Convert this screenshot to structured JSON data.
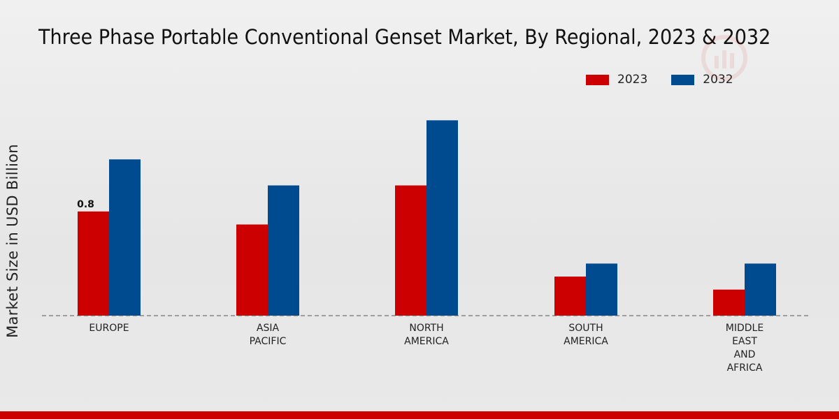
{
  "title": "Three Phase Portable Conventional Genset Market, By Regional, 2023 & 2032",
  "colors": {
    "2023": "#cc0000",
    "2032": "#004a8f",
    "footer": "#cc0000"
  },
  "chart_data": {
    "type": "bar",
    "title": "Three Phase Portable Conventional Genset Market, By Regional, 2023 & 2032",
    "ylabel": "Market Size in USD Billion",
    "xlabel": "",
    "categories": [
      "EUROPE",
      "ASIA PACIFIC",
      "NORTH AMERICA",
      "SOUTH AMERICA",
      "MIDDLE EAST AND AFRICA"
    ],
    "category_lines": [
      [
        "EUROPE"
      ],
      [
        "ASIA",
        "PACIFIC"
      ],
      [
        "NORTH",
        "AMERICA"
      ],
      [
        "SOUTH",
        "AMERICA"
      ],
      [
        "MIDDLE",
        "EAST",
        "AND",
        "AFRICA"
      ]
    ],
    "series": [
      {
        "name": "2023",
        "color": "#cc0000",
        "values": [
          0.8,
          0.7,
          1.0,
          0.3,
          0.2
        ]
      },
      {
        "name": "2032",
        "color": "#004a8f",
        "values": [
          1.2,
          1.0,
          1.5,
          0.4,
          0.4
        ]
      }
    ],
    "data_labels": [
      {
        "series": "2023",
        "category": "EUROPE",
        "text": "0.8"
      }
    ],
    "ylim": [
      0,
      1.7
    ],
    "grid": false,
    "legend_position": "top-right"
  }
}
